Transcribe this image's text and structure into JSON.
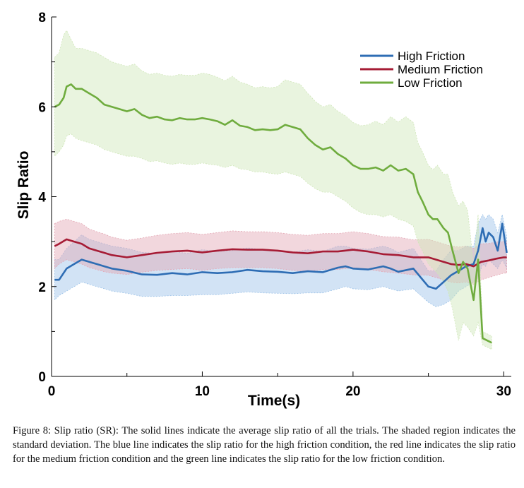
{
  "chart_data": {
    "type": "line",
    "xlabel": "Time(s)",
    "ylabel": "Slip Ratio",
    "xlim": [
      0,
      30.5
    ],
    "ylim": [
      0,
      8
    ],
    "xticks": [
      0,
      10,
      20,
      30
    ],
    "yticks": [
      0,
      2,
      4,
      6,
      8
    ],
    "grid": false,
    "legend_position": "top-right",
    "series": [
      {
        "name": "High Friction",
        "color": "#2e6db4",
        "shade_color": "#9cc2e8",
        "x": [
          0.2,
          0.5,
          1.0,
          1.5,
          2.0,
          2.5,
          3.0,
          3.5,
          4.0,
          5.0,
          6.0,
          7.0,
          8.0,
          9.0,
          10.0,
          11.0,
          12.0,
          13.0,
          14.0,
          15.0,
          16.0,
          17.0,
          18.0,
          19.0,
          19.5,
          20.0,
          21.0,
          22.0,
          22.5,
          23.0,
          24.0,
          24.5,
          25.0,
          25.5,
          26.0,
          26.5,
          27.0,
          27.5,
          28.0,
          28.3,
          28.6,
          28.8,
          29.0,
          29.3,
          29.6,
          29.9,
          30.2
        ],
        "y": [
          2.15,
          2.15,
          2.4,
          2.5,
          2.6,
          2.55,
          2.5,
          2.45,
          2.4,
          2.35,
          2.27,
          2.26,
          2.3,
          2.27,
          2.32,
          2.3,
          2.32,
          2.37,
          2.34,
          2.33,
          2.3,
          2.34,
          2.32,
          2.42,
          2.45,
          2.4,
          2.38,
          2.45,
          2.4,
          2.33,
          2.4,
          2.2,
          2.0,
          1.95,
          2.1,
          2.25,
          2.35,
          2.45,
          2.5,
          2.8,
          3.3,
          3.0,
          3.2,
          3.1,
          2.8,
          3.4,
          2.75
        ],
        "lower": [
          1.7,
          1.8,
          1.9,
          2.0,
          2.1,
          2.05,
          2.0,
          1.95,
          1.9,
          1.85,
          1.78,
          1.78,
          1.8,
          1.8,
          1.82,
          1.82,
          1.85,
          1.88,
          1.86,
          1.85,
          1.84,
          1.86,
          1.86,
          1.95,
          2.0,
          1.95,
          1.93,
          2.0,
          1.95,
          1.9,
          1.95,
          1.8,
          1.65,
          1.55,
          1.6,
          1.7,
          1.9,
          2.0,
          2.1,
          2.2,
          2.5,
          2.45,
          2.6,
          2.5,
          2.4,
          2.6,
          2.4
        ],
        "upper": [
          2.6,
          2.6,
          2.85,
          3.0,
          3.15,
          3.05,
          3.0,
          2.95,
          2.9,
          2.85,
          2.76,
          2.74,
          2.78,
          2.74,
          2.82,
          2.78,
          2.8,
          2.86,
          2.82,
          2.81,
          2.76,
          2.82,
          2.78,
          2.9,
          2.9,
          2.85,
          2.83,
          2.9,
          2.85,
          2.76,
          2.85,
          2.6,
          2.35,
          2.35,
          2.6,
          2.8,
          2.8,
          2.9,
          2.9,
          3.4,
          3.6,
          3.5,
          3.6,
          3.5,
          3.2,
          3.6,
          3.1
        ]
      },
      {
        "name": "Medium Friction",
        "color": "#a61c35",
        "shade_color": "#e3a6b3",
        "x": [
          0.2,
          0.5,
          1.0,
          1.5,
          2.0,
          2.5,
          3.0,
          3.5,
          4.0,
          5.0,
          6.0,
          7.0,
          8.0,
          9.0,
          10.0,
          11.0,
          12.0,
          13.0,
          14.0,
          15.0,
          16.0,
          17.0,
          18.0,
          19.0,
          20.0,
          21.0,
          22.0,
          23.0,
          24.0,
          25.0,
          26.0,
          26.5,
          27.0,
          27.5,
          28.0,
          28.5,
          29.0,
          29.5,
          30.0,
          30.2
        ],
        "y": [
          2.9,
          2.95,
          3.05,
          3.0,
          2.95,
          2.85,
          2.8,
          2.75,
          2.7,
          2.65,
          2.7,
          2.75,
          2.78,
          2.8,
          2.76,
          2.8,
          2.83,
          2.82,
          2.82,
          2.8,
          2.76,
          2.74,
          2.78,
          2.78,
          2.82,
          2.78,
          2.72,
          2.7,
          2.65,
          2.65,
          2.55,
          2.5,
          2.48,
          2.5,
          2.45,
          2.55,
          2.58,
          2.62,
          2.65,
          2.65
        ],
        "lower": [
          2.4,
          2.5,
          2.6,
          2.55,
          2.5,
          2.42,
          2.38,
          2.33,
          2.3,
          2.27,
          2.32,
          2.36,
          2.38,
          2.4,
          2.36,
          2.4,
          2.42,
          2.42,
          2.42,
          2.4,
          2.36,
          2.34,
          2.38,
          2.38,
          2.42,
          2.38,
          2.33,
          2.3,
          2.26,
          2.25,
          2.15,
          2.1,
          2.08,
          2.1,
          2.05,
          2.15,
          2.2,
          2.25,
          2.3,
          2.3
        ],
        "upper": [
          3.4,
          3.45,
          3.5,
          3.45,
          3.4,
          3.28,
          3.22,
          3.17,
          3.1,
          3.03,
          3.08,
          3.14,
          3.18,
          3.2,
          3.16,
          3.2,
          3.24,
          3.22,
          3.22,
          3.2,
          3.16,
          3.14,
          3.18,
          3.18,
          3.22,
          3.18,
          3.11,
          3.1,
          3.04,
          3.05,
          2.95,
          2.9,
          2.88,
          2.9,
          2.85,
          2.95,
          2.96,
          2.99,
          3.0,
          3.0
        ]
      },
      {
        "name": "Low Friction",
        "color": "#6fac3e",
        "shade_color": "#cfe6b8",
        "x": [
          0.2,
          0.5,
          0.8,
          1.0,
          1.3,
          1.6,
          2.0,
          2.5,
          3.0,
          3.5,
          4.0,
          4.5,
          5.0,
          5.5,
          6.0,
          6.5,
          7.0,
          7.5,
          8.0,
          8.5,
          9.0,
          9.5,
          10.0,
          10.5,
          11.0,
          11.5,
          12.0,
          12.5,
          13.0,
          13.5,
          14.0,
          14.5,
          15.0,
          15.5,
          16.0,
          16.5,
          17.0,
          17.5,
          18.0,
          18.5,
          19.0,
          19.5,
          20.0,
          20.5,
          21.0,
          21.5,
          22.0,
          22.5,
          23.0,
          23.5,
          24.0,
          24.3,
          24.6,
          25.0,
          25.3,
          25.6,
          26.0,
          26.3,
          26.6,
          27.0,
          27.3,
          27.6,
          28.0,
          28.3,
          28.6,
          28.9,
          29.2
        ],
        "y": [
          6.0,
          6.05,
          6.2,
          6.45,
          6.5,
          6.4,
          6.4,
          6.3,
          6.2,
          6.05,
          6.0,
          5.95,
          5.9,
          5.95,
          5.82,
          5.75,
          5.78,
          5.72,
          5.7,
          5.75,
          5.72,
          5.72,
          5.75,
          5.72,
          5.68,
          5.6,
          5.7,
          5.58,
          5.55,
          5.48,
          5.5,
          5.48,
          5.5,
          5.6,
          5.55,
          5.5,
          5.3,
          5.15,
          5.05,
          5.1,
          4.95,
          4.85,
          4.7,
          4.62,
          4.62,
          4.65,
          4.58,
          4.7,
          4.58,
          4.62,
          4.5,
          4.1,
          3.9,
          3.6,
          3.5,
          3.5,
          3.3,
          3.2,
          2.8,
          2.3,
          2.55,
          2.4,
          1.7,
          2.6,
          0.85,
          0.8,
          0.75
        ],
        "lower": [
          4.9,
          5.0,
          5.15,
          5.35,
          5.4,
          5.3,
          5.25,
          5.2,
          5.15,
          5.05,
          5.0,
          4.95,
          4.9,
          4.9,
          4.85,
          4.78,
          4.8,
          4.75,
          4.72,
          4.75,
          4.72,
          4.72,
          4.75,
          4.72,
          4.7,
          4.65,
          4.7,
          4.62,
          4.6,
          4.55,
          4.55,
          4.52,
          4.5,
          4.55,
          4.5,
          4.45,
          4.3,
          4.18,
          4.1,
          4.1,
          4.0,
          3.9,
          3.75,
          3.65,
          3.6,
          3.6,
          3.55,
          3.6,
          3.5,
          3.45,
          3.35,
          3.0,
          2.8,
          2.5,
          2.4,
          2.3,
          2.1,
          1.9,
          1.5,
          0.8,
          1.2,
          1.1,
          0.9,
          1.2,
          0.7,
          0.65,
          0.6
        ],
        "upper": [
          7.1,
          7.2,
          7.6,
          7.7,
          7.5,
          7.3,
          7.3,
          7.25,
          7.2,
          7.1,
          7.0,
          6.95,
          6.9,
          6.95,
          6.8,
          6.72,
          6.75,
          6.7,
          6.68,
          6.72,
          6.7,
          6.7,
          6.75,
          6.72,
          6.66,
          6.58,
          6.68,
          6.55,
          6.5,
          6.42,
          6.45,
          6.42,
          6.45,
          6.6,
          6.55,
          6.5,
          6.3,
          6.12,
          6.0,
          6.05,
          5.9,
          5.8,
          5.65,
          5.58,
          5.6,
          5.68,
          5.6,
          5.78,
          5.66,
          5.78,
          5.65,
          5.2,
          5.0,
          4.7,
          4.6,
          4.7,
          4.5,
          4.5,
          4.1,
          3.8,
          3.9,
          3.7,
          2.5,
          3.6,
          1.0,
          0.95,
          0.9
        ]
      }
    ]
  },
  "caption": "Figure 8:  Slip ratio (SR): The solid lines indicate the average slip ratio of all the trials. The shaded region indicates the standard deviation. The blue line indicates the slip ratio for the high friction condition, the red line indicates the slip ratio for the medium friction condition and the green line indicates the slip ratio for the low friction condition."
}
